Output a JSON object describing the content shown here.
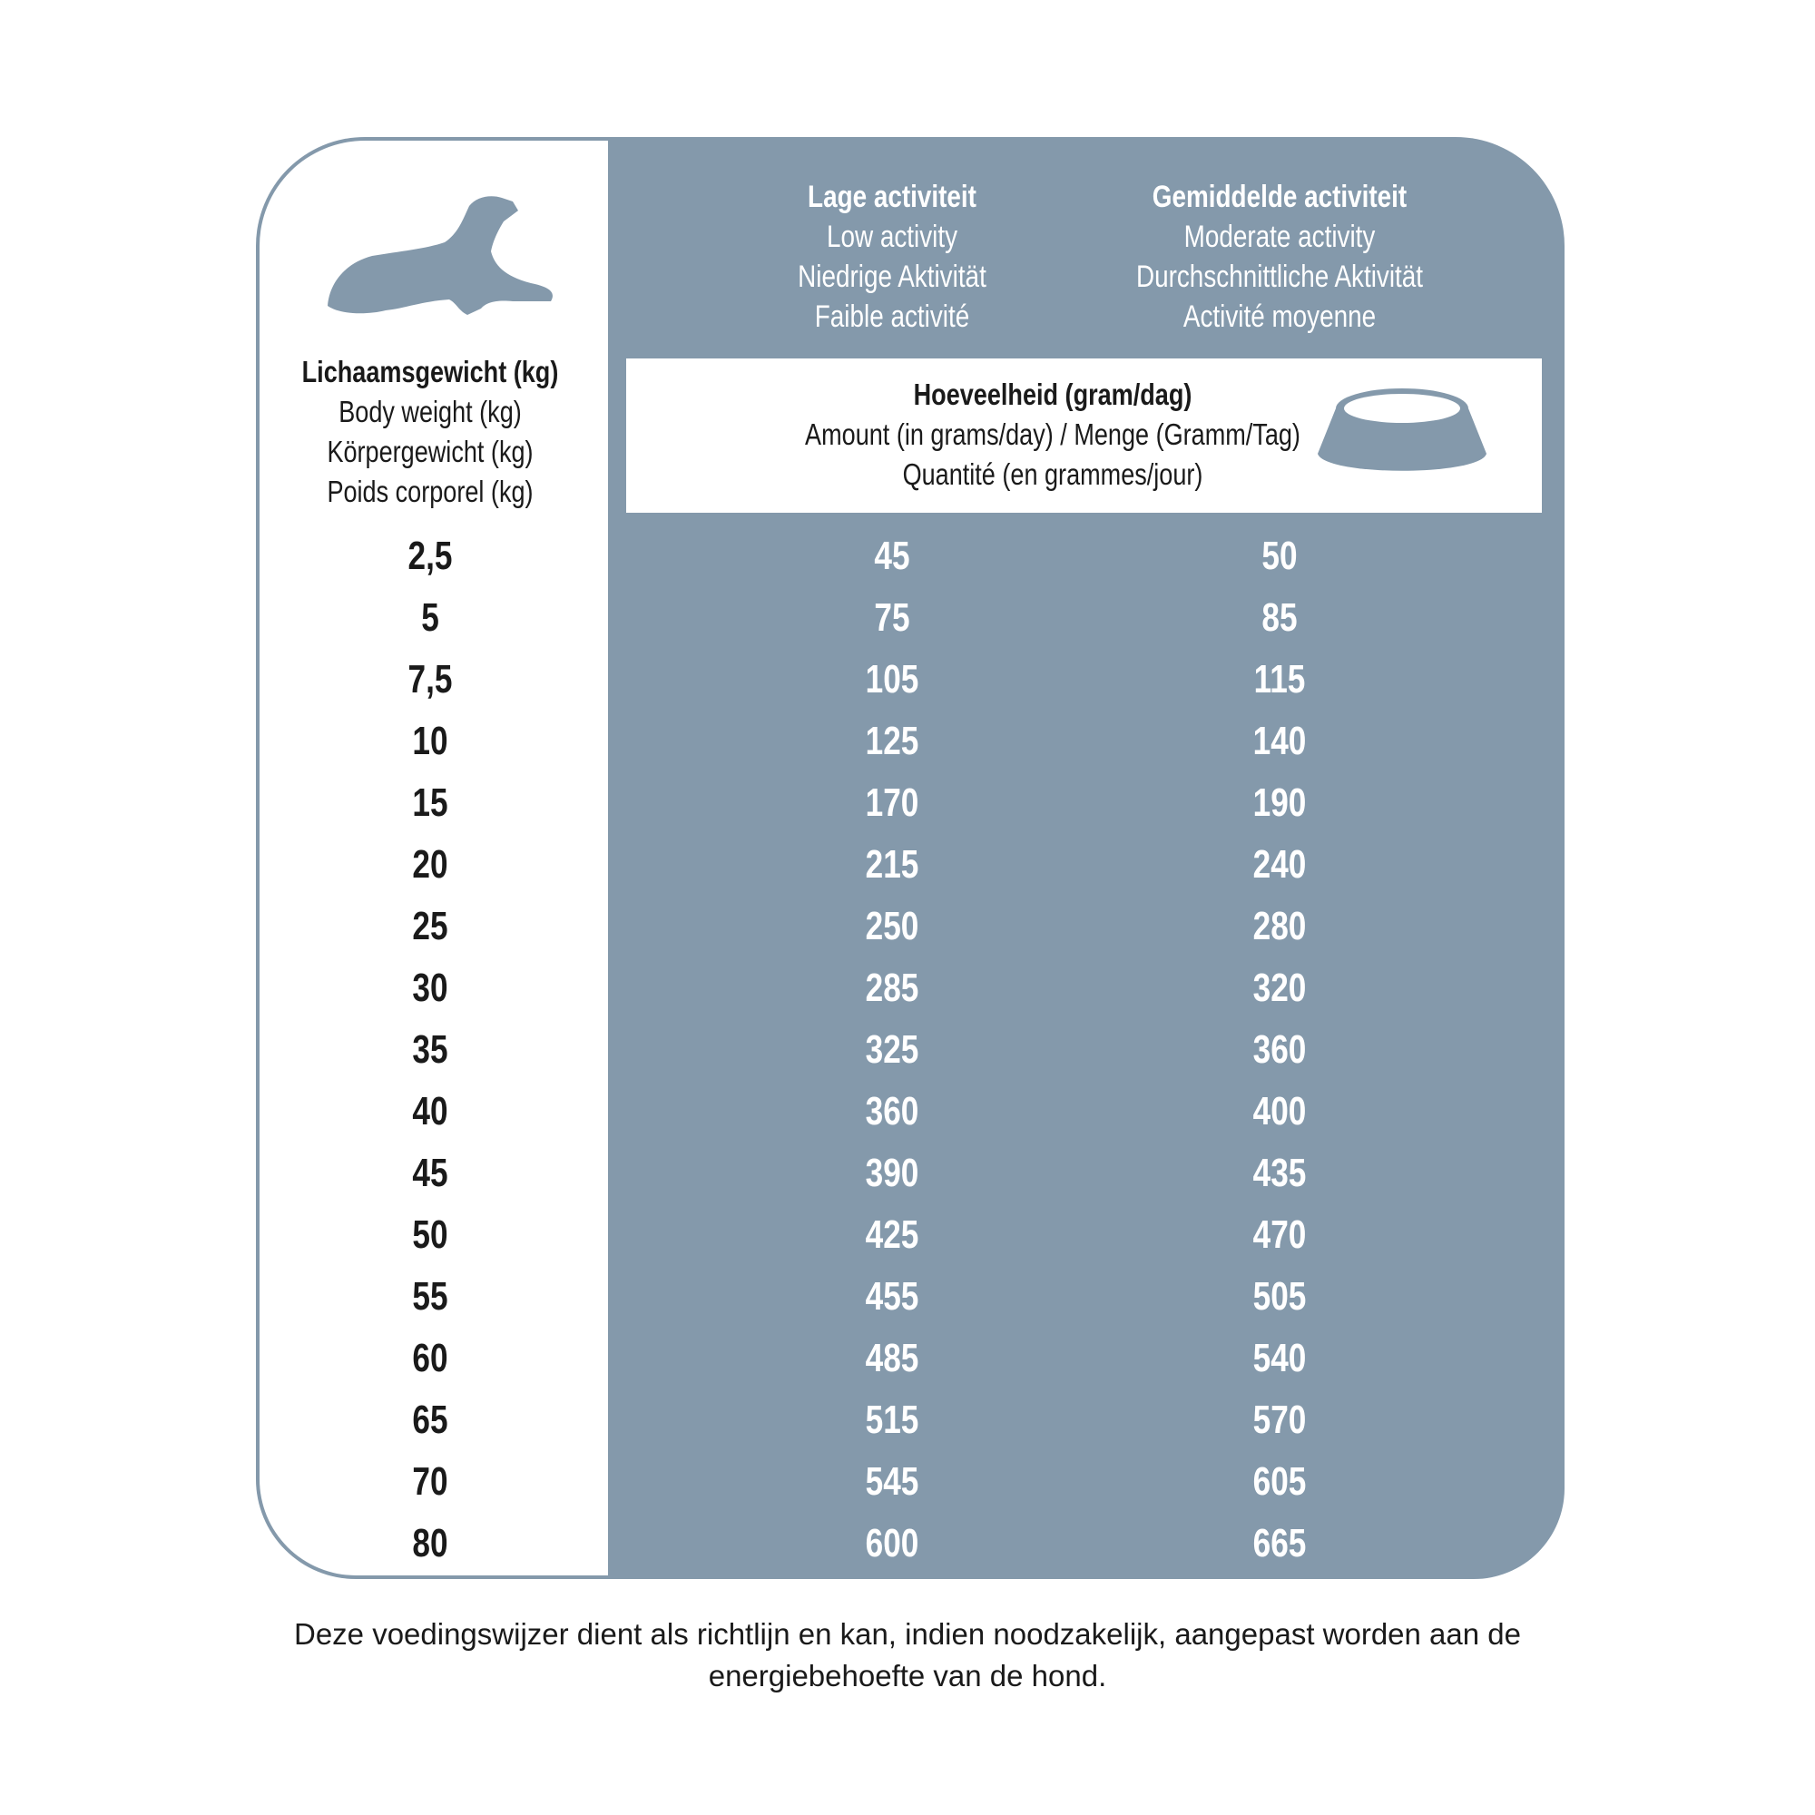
{
  "colors": {
    "panel": "#8499ab",
    "text_dark": "#1a1a1a",
    "text_light": "#ffffff"
  },
  "icons": {
    "dog": "lying-dog-silhouette-icon",
    "bowl": "food-bowl-icon"
  },
  "columns": [
    {
      "lines": [
        "Lage activiteit",
        "Low activity",
        "Niedrige Aktivität",
        "Faible activité"
      ]
    },
    {
      "lines": [
        "Gemiddelde activiteit",
        "Moderate activity",
        "Durchschnittliche Aktivität",
        "Activité moyenne"
      ]
    }
  ],
  "body_weight": {
    "lines": [
      "Lichaamsgewicht (kg)",
      "Body weight (kg)",
      "Körpergewicht (kg)",
      "Poids corporel (kg)"
    ]
  },
  "amount": {
    "lines": [
      "Hoeveelheid (gram/dag)",
      "Amount (in grams/day) / Menge (Gramm/Tag)",
      "Quantité (en grammes/jour)"
    ]
  },
  "rows": [
    [
      "2,5",
      "45",
      "50"
    ],
    [
      "5",
      "75",
      "85"
    ],
    [
      "7,5",
      "105",
      "115"
    ],
    [
      "10",
      "125",
      "140"
    ],
    [
      "15",
      "170",
      "190"
    ],
    [
      "20",
      "215",
      "240"
    ],
    [
      "25",
      "250",
      "280"
    ],
    [
      "30",
      "285",
      "320"
    ],
    [
      "35",
      "325",
      "360"
    ],
    [
      "40",
      "360",
      "400"
    ],
    [
      "45",
      "390",
      "435"
    ],
    [
      "50",
      "425",
      "470"
    ],
    [
      "55",
      "455",
      "505"
    ],
    [
      "60",
      "485",
      "540"
    ],
    [
      "65",
      "515",
      "570"
    ],
    [
      "70",
      "545",
      "605"
    ],
    [
      "80",
      "600",
      "665"
    ]
  ],
  "footer": {
    "lines": [
      "Deze voedingswijzer dient als richtlijn en kan, indien noodzakelijk, aangepast worden aan de",
      "energiebehoefte van de hond."
    ]
  }
}
